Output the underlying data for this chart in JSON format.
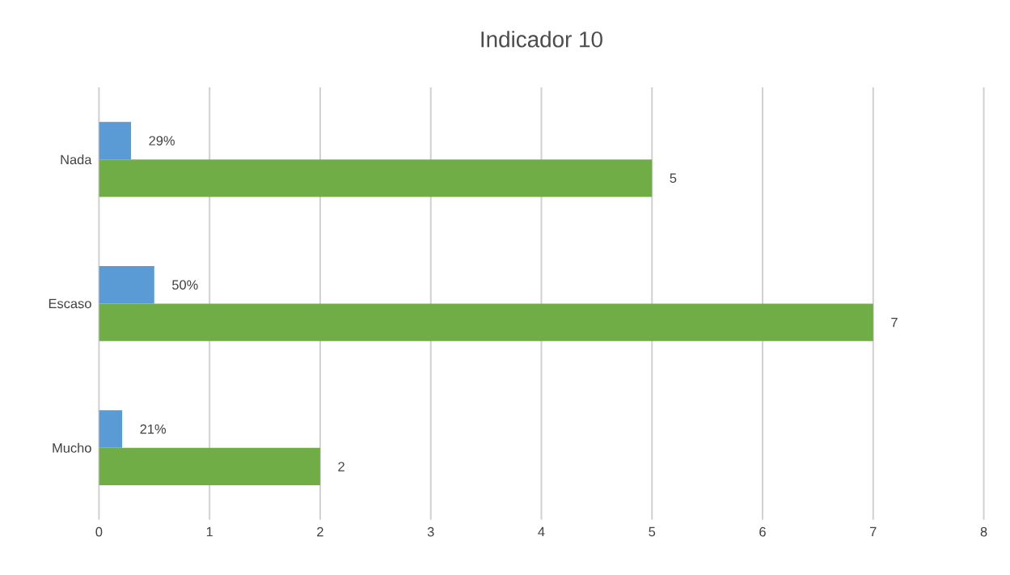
{
  "chart_data": {
    "type": "bar",
    "title": "Indicador  10",
    "orientation": "horizontal",
    "categories": [
      "Nada",
      "Escaso",
      "Mucho"
    ],
    "series": [
      {
        "color": "#5b9bd5",
        "values": [
          0.29,
          0.5,
          0.21
        ],
        "value_labels": [
          "29%",
          "50%",
          "21%"
        ]
      },
      {
        "color": "#70ad47",
        "values": [
          5,
          7,
          2
        ],
        "value_labels": [
          "5",
          "7",
          "2"
        ]
      }
    ],
    "xlim": [
      0,
      8
    ],
    "xticks": [
      0,
      1,
      2,
      3,
      4,
      5,
      6,
      7,
      8
    ],
    "grid": "x"
  }
}
